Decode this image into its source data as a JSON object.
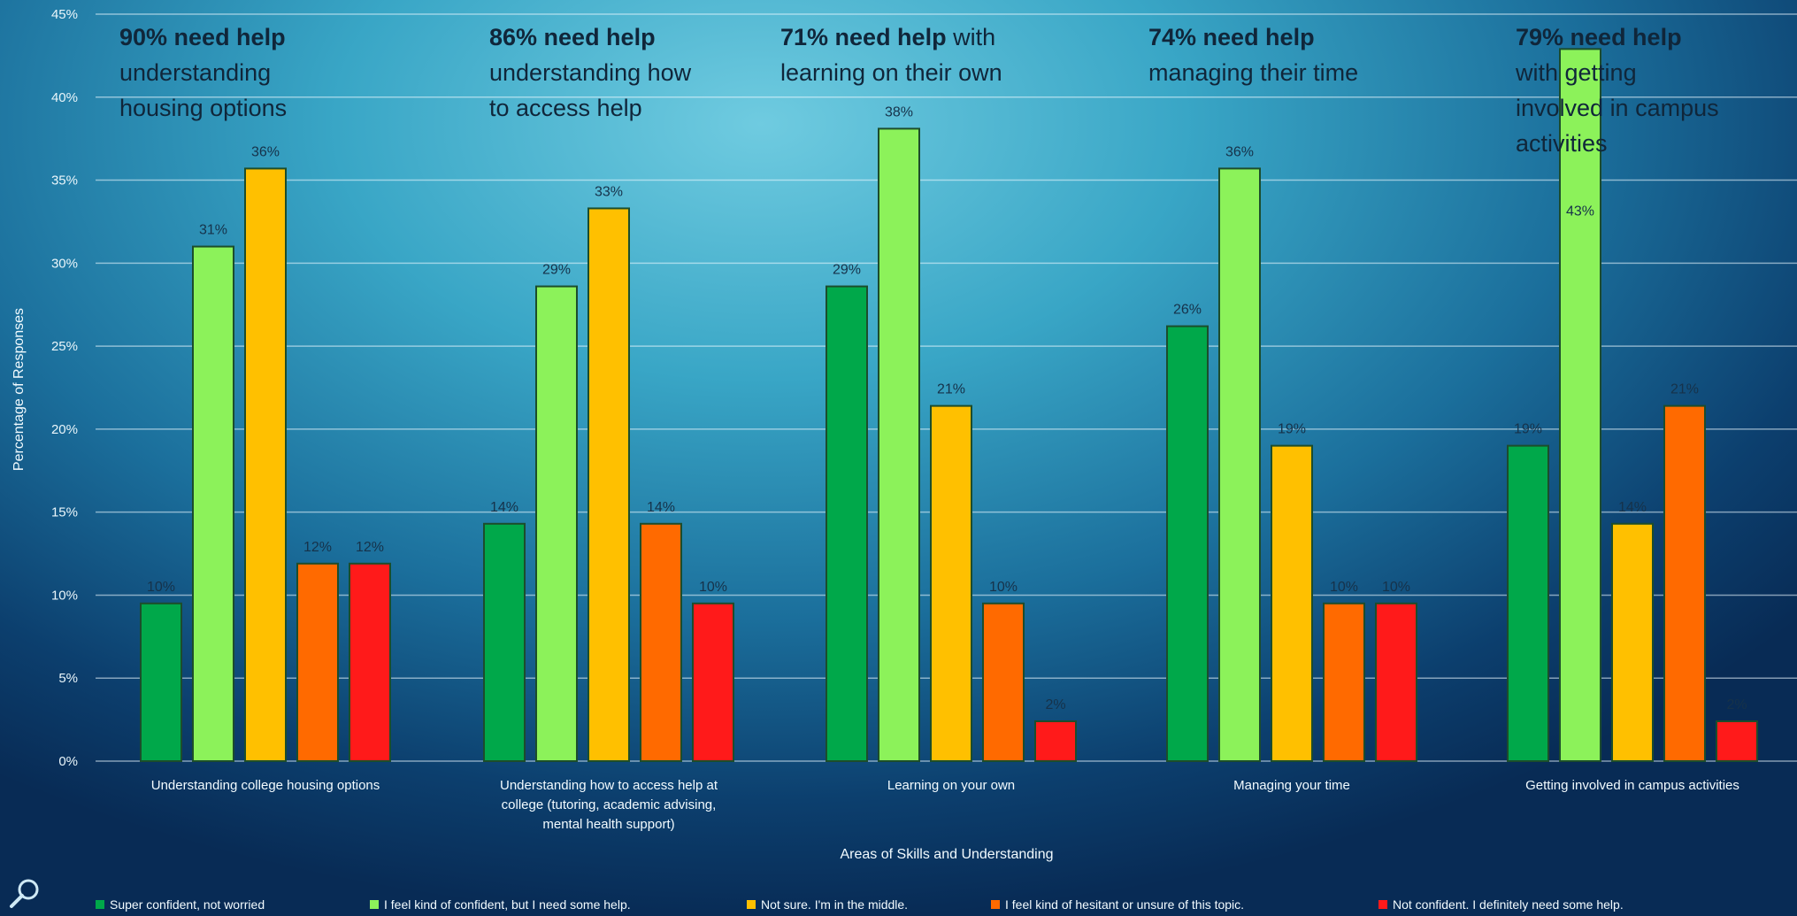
{
  "chart_data": {
    "type": "bar",
    "xlabel": "Areas of Skills and Understanding",
    "ylabel": "Percentage of Responses",
    "ylim": [
      0,
      45
    ],
    "yticks": [
      "0%",
      "5%",
      "10%",
      "15%",
      "20%",
      "25%",
      "30%",
      "35%",
      "40%",
      "45%"
    ],
    "grid": true,
    "legend_position": "bottom",
    "categories": [
      [
        "Understanding college housing options"
      ],
      [
        "Understanding how to access help at",
        "college (tutoring, academic advising,",
        "mental health support)"
      ],
      [
        "Learning on your own"
      ],
      [
        "Managing your time"
      ],
      [
        "Getting involved in campus activities"
      ]
    ],
    "series": [
      {
        "name": "Super confident, not worried",
        "color": "#00a84a",
        "values": [
          9.5,
          14.3,
          28.6,
          26.2,
          19.0
        ],
        "labels": [
          "10%",
          "14%",
          "29%",
          "26%",
          "19%"
        ]
      },
      {
        "name": "I feel kind of confident, but I need some help.",
        "color": "#8cf25a",
        "values": [
          31.0,
          28.6,
          38.1,
          35.7,
          42.9
        ],
        "labels": [
          "31%",
          "29%",
          "38%",
          "36%",
          "43%"
        ]
      },
      {
        "name": "Not sure. I'm in the middle.",
        "color": "#ffc000",
        "values": [
          35.7,
          33.3,
          21.4,
          19.0,
          14.3
        ],
        "labels": [
          "36%",
          "33%",
          "21%",
          "19%",
          "14%"
        ]
      },
      {
        "name": "I feel kind of hesitant or unsure of this topic.",
        "color": "#ff6a00",
        "values": [
          11.9,
          14.3,
          9.5,
          9.5,
          21.4
        ],
        "labels": [
          "12%",
          "14%",
          "10%",
          "10%",
          "21%"
        ]
      },
      {
        "name": "Not confident. I definitely need some help.",
        "color": "#ff1a1a",
        "values": [
          11.9,
          9.5,
          2.4,
          9.5,
          2.4
        ],
        "labels": [
          "12%",
          "10%",
          "2%",
          "10%",
          "2%"
        ]
      }
    ],
    "annotations": [
      {
        "highlight": "90% need help",
        "rest": [
          "understanding",
          "housing options"
        ]
      },
      {
        "highlight": "86% need help",
        "rest": [
          "understanding how",
          "to access help"
        ]
      },
      {
        "highlight": "71% need help",
        "inline": " with",
        "rest": [
          "learning on their own"
        ]
      },
      {
        "highlight": "74% need help",
        "rest": [
          "managing their time"
        ]
      },
      {
        "highlight": "79% need help",
        "rest": [
          "with getting",
          "involved in campus",
          "activities"
        ]
      }
    ]
  },
  "icons": {
    "bottom_left": "search-icon"
  }
}
